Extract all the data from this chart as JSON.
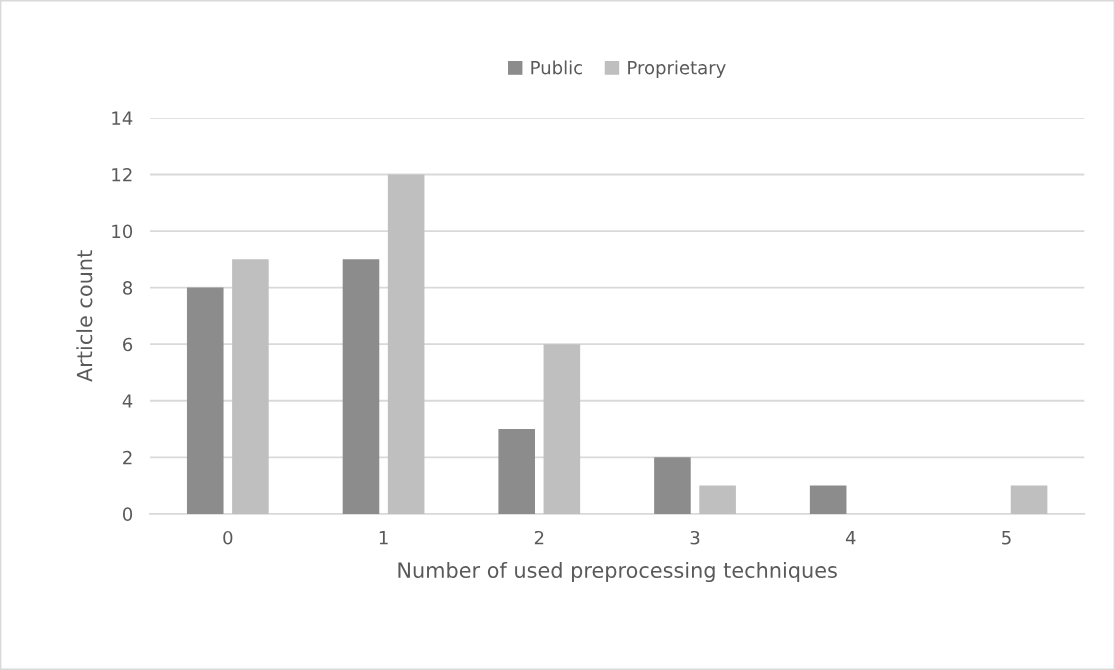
{
  "chart_data": {
    "type": "bar",
    "xlabel": "Number of used preprocessing techniques",
    "ylabel": "Article count",
    "categories": [
      "0",
      "1",
      "2",
      "3",
      "4",
      "5"
    ],
    "series": [
      {
        "name": "Public",
        "color": "#8c8c8c",
        "values": [
          8,
          9,
          3,
          2,
          1,
          0
        ]
      },
      {
        "name": "Proprietary",
        "color": "#bfbfbf",
        "values": [
          9,
          12,
          6,
          1,
          0,
          1
        ]
      }
    ],
    "ylim": [
      0,
      14
    ],
    "yticks": [
      0,
      2,
      4,
      6,
      8,
      10,
      12,
      14
    ],
    "grid": "y",
    "legend": "top"
  }
}
